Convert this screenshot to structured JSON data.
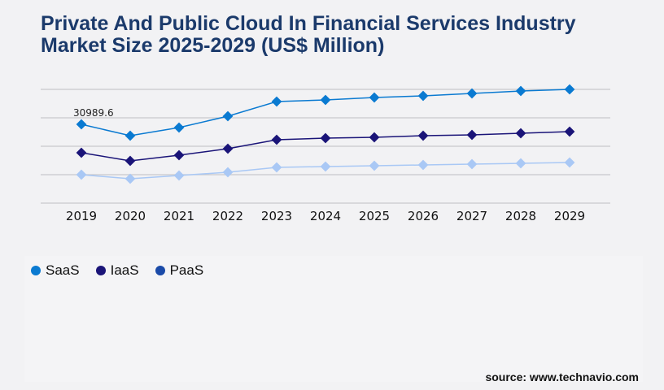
{
  "chart_data": {
    "type": "line",
    "title": "Private And Public Cloud In Financial Services Industry Market Size 2025-2029 (US$ Million)",
    "categories": [
      "2019",
      "2020",
      "2021",
      "2022",
      "2023",
      "2024",
      "2025",
      "2026",
      "2027",
      "2028",
      "2029"
    ],
    "series": [
      {
        "name": "SaaS",
        "color": "#0a7ad1",
        "legend_color": "#0a7ad1",
        "values": [
          30989.6,
          26518,
          29713,
          34186,
          39937,
          40576,
          41535,
          42174,
          43132,
          44091,
          44730
        ]
      },
      {
        "name": "IaaS",
        "color": "#1a1478",
        "legend_color": "#1a1478",
        "values": [
          19809,
          16614,
          18850,
          21406,
          24921,
          25560,
          25880,
          26519,
          26838,
          27477,
          28116
        ]
      },
      {
        "name": "PaaS",
        "color": "#a9c8f5",
        "legend_color": "#1a4aa8",
        "values": [
          11183,
          9585,
          10863,
          12141,
          14058,
          14378,
          14697,
          15017,
          15336,
          15656,
          15975
        ]
      }
    ],
    "annotations": [
      {
        "series": "SaaS",
        "category": "2019",
        "text": "30989.6"
      }
    ],
    "grid": true,
    "legend_position": "bottom-left",
    "marker": "diamond"
  },
  "source": "source: www.technavio.com"
}
